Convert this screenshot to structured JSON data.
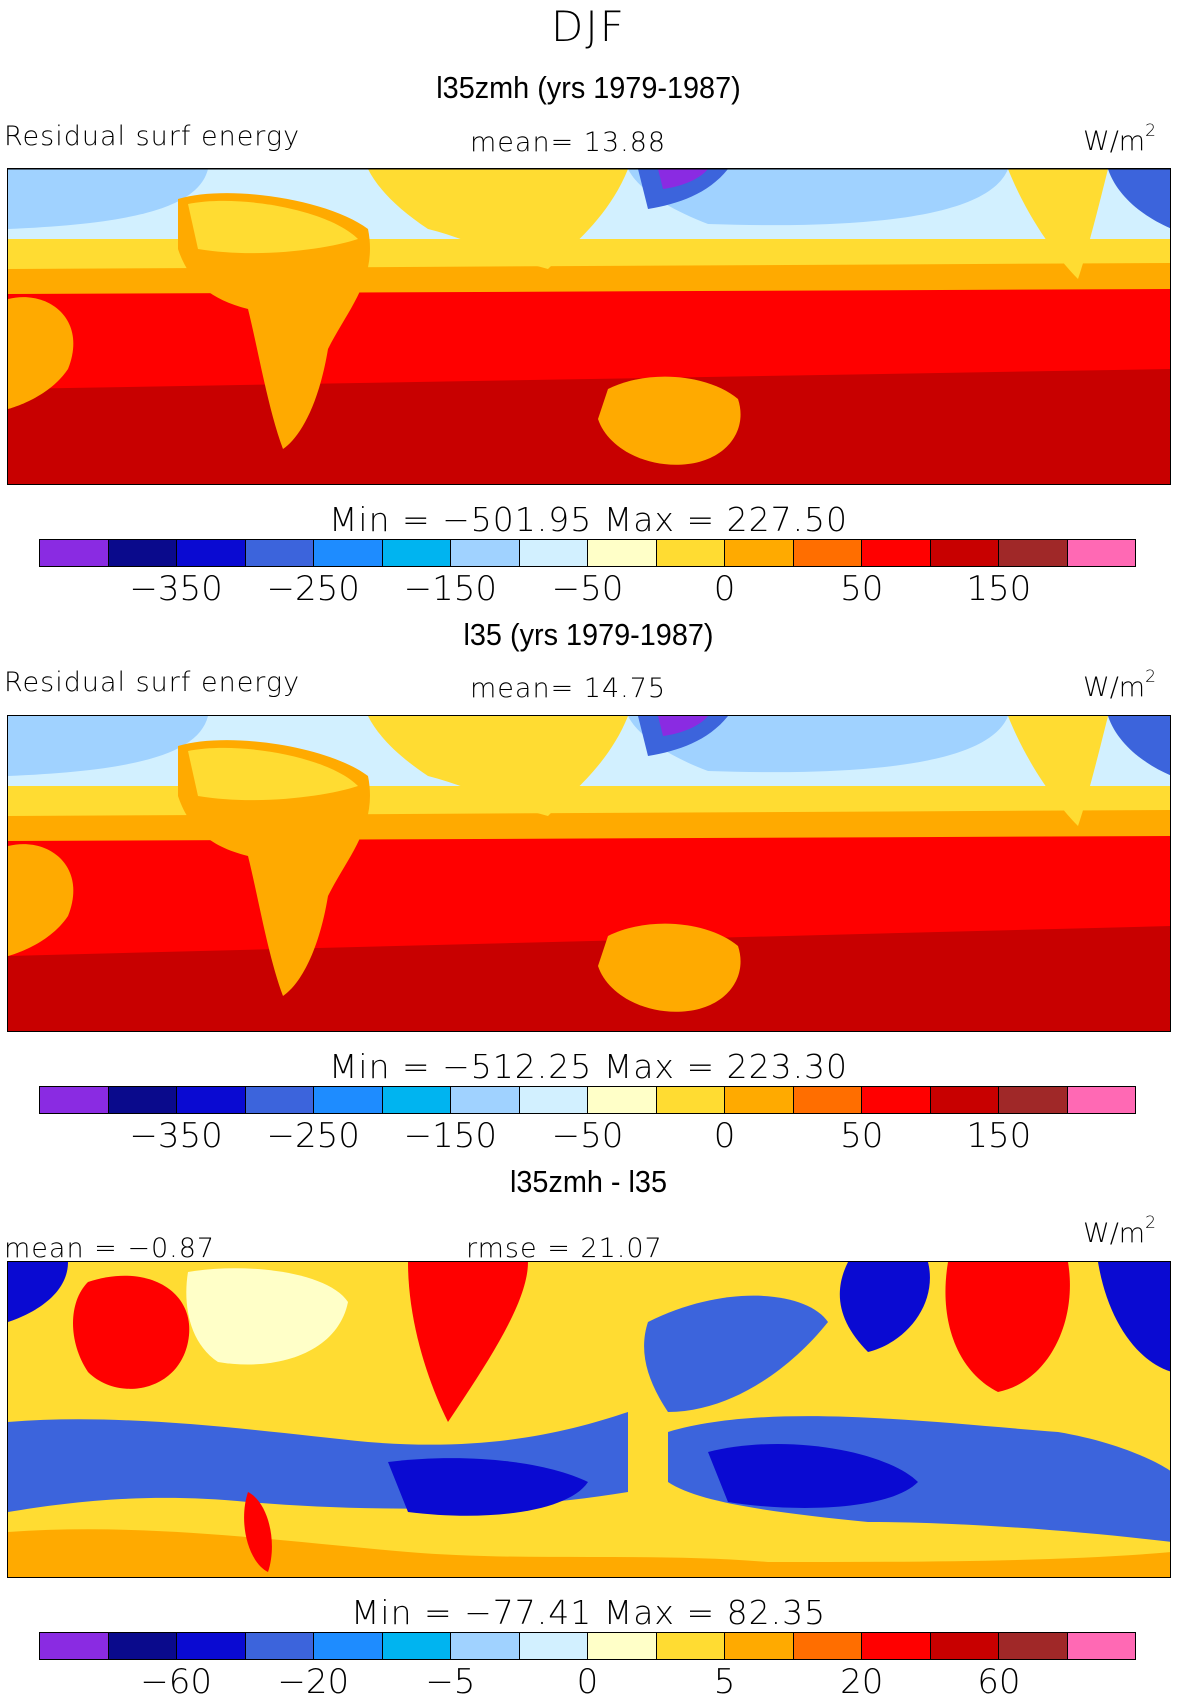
{
  "season": "DJF",
  "units": "W/m",
  "units_sup": "2",
  "colorbar_colors": [
    "#8a2be2",
    "#0a0a8c",
    "#0a0ad2",
    "#3c64dc",
    "#1e8cff",
    "#00b4f0",
    "#a0d2ff",
    "#d2f0ff",
    "#ffffc8",
    "#ffdc32",
    "#ffaa00",
    "#ff6e00",
    "#ff0000",
    "#c80000",
    "#a02828",
    "#ff69b4"
  ],
  "panels": [
    {
      "title": "l35zmh (yrs 1979-1987)",
      "left_label": "Residual surf energy",
      "center_label": "mean=  13.88",
      "minmax": "Min = −501.95 Max = 227.50",
      "ticks": [
        "−350",
        "−250",
        "−150",
        "−50",
        "0",
        "50",
        "150"
      ],
      "values": {
        "mean": 13.88,
        "min": -501.95,
        "max": 227.5
      }
    },
    {
      "title": "l35 (yrs 1979-1987)",
      "left_label": "Residual surf energy",
      "center_label": "mean=  14.75",
      "minmax": "Min = −512.25 Max = 223.30",
      "ticks": [
        "−350",
        "−250",
        "−150",
        "−50",
        "0",
        "50",
        "150"
      ],
      "values": {
        "mean": 14.75,
        "min": -512.25,
        "max": 223.3
      }
    },
    {
      "title": "l35zmh - l35",
      "left_label": "mean =   −0.87",
      "center_label": "rmse =   21.07",
      "minmax": "Min = −77.41 Max =   82.35",
      "ticks": [
        "−60",
        "−20",
        "−5",
        "0",
        "5",
        "20",
        "60"
      ],
      "values": {
        "mean": -0.87,
        "rmse": 21.07,
        "min": -77.41,
        "max": 82.35
      }
    }
  ]
}
